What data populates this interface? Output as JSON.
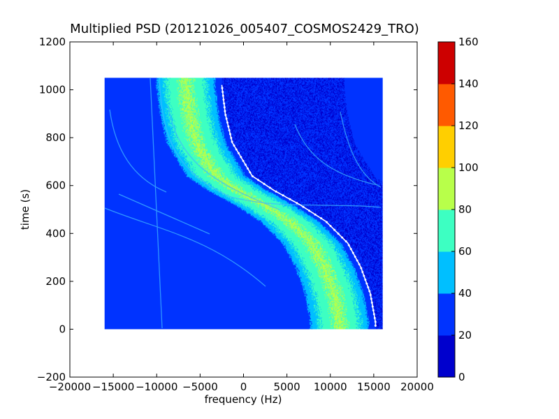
{
  "chart_data": {
    "type": "heatmap",
    "title": "Multiplied PSD (20121026_005407_COSMOS2429_TRO)",
    "xlabel": "frequency (Hz)",
    "ylabel": "time (s)",
    "xlim": [
      -20000,
      20000
    ],
    "ylim": [
      -200,
      1200
    ],
    "xticks": [
      -20000,
      -15000,
      -10000,
      -5000,
      0,
      5000,
      10000,
      15000,
      20000
    ],
    "xtick_labels": [
      "−20000",
      "−15000",
      "−10000",
      "−5000",
      "0",
      "5000",
      "10000",
      "15000",
      "20000"
    ],
    "yticks": [
      -200,
      0,
      200,
      400,
      600,
      800,
      1000,
      1200
    ],
    "ytick_labels": [
      "−200",
      "0",
      "200",
      "400",
      "600",
      "800",
      "1000",
      "1200"
    ],
    "data_extent": {
      "x": [
        -16000,
        16000
      ],
      "y": [
        0,
        1050
      ]
    },
    "grid": false,
    "colormap": "jet",
    "colorbar": {
      "levels": [
        0,
        20,
        40,
        60,
        80,
        100,
        120,
        140,
        160
      ],
      "labels": [
        "0",
        "20",
        "40",
        "60",
        "80",
        "100",
        "120",
        "140",
        "160"
      ],
      "colors": [
        "#0000cd",
        "#0033ff",
        "#00bfff",
        "#3dffc2",
        "#b8ff4a",
        "#ffcf00",
        "#ff5a00",
        "#cd0000"
      ]
    },
    "background_value": 30,
    "low_region_value": 20,
    "main_band": {
      "center_offset_hz": 9500,
      "width_hz": 7000,
      "peak_value": 85
    },
    "tracking_curve": {
      "color": "#ffffff",
      "points": [
        {
          "x": -2500,
          "y": 1020
        },
        {
          "x": -2100,
          "y": 900
        },
        {
          "x": -1300,
          "y": 780
        },
        {
          "x": 1000,
          "y": 640
        },
        {
          "x": 3500,
          "y": 580
        },
        {
          "x": 6500,
          "y": 520
        },
        {
          "x": 9500,
          "y": 450
        },
        {
          "x": 12000,
          "y": 360
        },
        {
          "x": 13500,
          "y": 260
        },
        {
          "x": 14600,
          "y": 150
        },
        {
          "x": 15200,
          "y": 30
        }
      ]
    }
  }
}
